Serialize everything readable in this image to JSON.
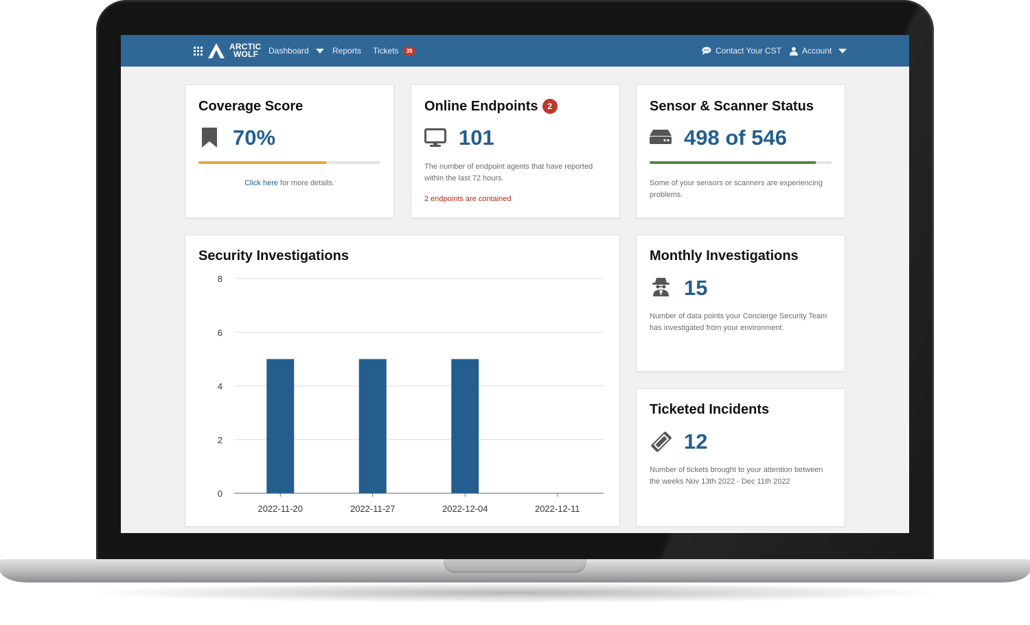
{
  "nav": {
    "logo_line1": "ARCTIC",
    "logo_line2": "WOLF",
    "dashboard": "Dashboard",
    "reports": "Reports",
    "tickets": "Tickets",
    "tickets_count": "39",
    "contact": "Contact Your CST",
    "account": "Account"
  },
  "coverage": {
    "title": "Coverage Score",
    "value": "70%",
    "progress": 0.7,
    "link_text": "Click here",
    "suffix_text": " for more details."
  },
  "endpoints": {
    "title": "Online Endpoints",
    "badge": "2",
    "value": "101",
    "description": "The number of endpoint agents that have reported within the last 72 hours.",
    "alert": "2 endpoints are contained"
  },
  "sensors": {
    "title": "Sensor & Scanner Status",
    "value": "498 of 546",
    "online": 498,
    "total": 546,
    "description": "Some of your sensors or scanners are experiencing problems."
  },
  "investigations_chart": {
    "title": "Security Investigations"
  },
  "chart_data": {
    "type": "bar",
    "categories": [
      "2022-11-20",
      "2022-11-27",
      "2022-12-04",
      "2022-12-11"
    ],
    "values": [
      5,
      5,
      5,
      0
    ],
    "ylim": [
      0,
      8
    ],
    "yticks": [
      0,
      2,
      4,
      6,
      8
    ],
    "grid": true,
    "color": "#245e8f"
  },
  "monthly": {
    "title": "Monthly Investigations",
    "value": "15",
    "description": "Number of data points your Concierge Security Team has investigated from your environment."
  },
  "incidents": {
    "title": "Ticketed Incidents",
    "value": "12",
    "description": "Number of tickets brought to your attention between the weeks Nov 13th 2022 - Dec 11th 2022"
  },
  "colors": {
    "navbar": "#2f6797",
    "accent": "#245e8f",
    "coverage_bar": "#e8a63c",
    "sensor_bar": "#4f8a3e",
    "alert": "#b02a1c",
    "badge": "#c0392b"
  }
}
